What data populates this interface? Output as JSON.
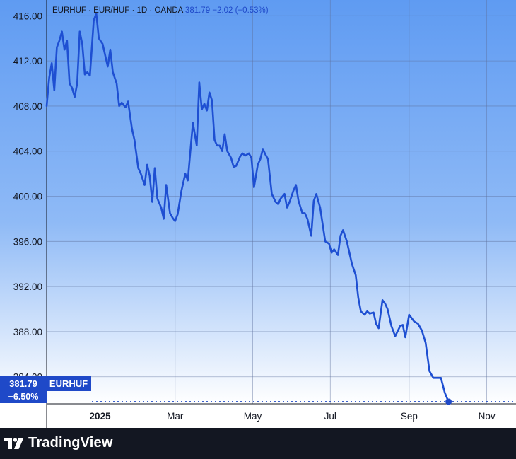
{
  "header": {
    "symbol": "EURHUF",
    "description": "EUR/HUF",
    "interval": "1D",
    "exchange": "OANDA",
    "price": "381.79",
    "change": "−2.02",
    "change_pct": "(−0.53%)"
  },
  "price_label": {
    "value": "381.79",
    "change_pct": "−6.50%",
    "series": "EURHUF"
  },
  "branding": "TradingView",
  "colors": {
    "line": "#1e4fd2",
    "label_bg": "#1f49c8",
    "grid": "#5c6f9a",
    "footer": "#131722",
    "bg_top": "#5f9bf2",
    "bg_bottom": "#ffffff"
  },
  "chart_data": {
    "type": "line",
    "title": "",
    "xlabel": "",
    "ylabel": "",
    "ylim": [
      381.6,
      417.4
    ],
    "y_ticks": [
      "416.00",
      "412.00",
      "408.00",
      "404.00",
      "400.00",
      "396.00",
      "392.00",
      "388.00",
      "384.00"
    ],
    "x_ticks": [
      "2025",
      "Mar",
      "May",
      "Jul",
      "Sep",
      "Nov"
    ],
    "x_tick_dates": [
      "2025-01-01",
      "2025-03-01",
      "2025-05-01",
      "2025-07-01",
      "2025-09-01",
      "2025-11-01"
    ],
    "x_range": [
      "2024-11-20",
      "2025-11-24"
    ],
    "last_value": 381.79,
    "series": [
      {
        "name": "EURHUF",
        "points": [
          [
            "2024-11-20",
            408.0
          ],
          [
            "2024-11-22",
            410.5
          ],
          [
            "2024-11-24",
            411.8
          ],
          [
            "2024-11-26",
            409.4
          ],
          [
            "2024-11-28",
            413.2
          ],
          [
            "2024-11-30",
            413.8
          ],
          [
            "2024-12-02",
            414.6
          ],
          [
            "2024-12-04",
            413.0
          ],
          [
            "2024-12-06",
            413.8
          ],
          [
            "2024-12-08",
            410.0
          ],
          [
            "2024-12-10",
            409.6
          ],
          [
            "2024-12-12",
            408.8
          ],
          [
            "2024-12-14",
            410.0
          ],
          [
            "2024-12-16",
            414.6
          ],
          [
            "2024-12-18",
            413.5
          ],
          [
            "2024-12-20",
            410.8
          ],
          [
            "2024-12-22",
            411.0
          ],
          [
            "2024-12-24",
            410.7
          ],
          [
            "2024-12-27",
            415.6
          ],
          [
            "2024-12-29",
            416.2
          ],
          [
            "2024-12-31",
            414.0
          ],
          [
            "2025-01-03",
            413.5
          ],
          [
            "2025-01-05",
            412.5
          ],
          [
            "2025-01-07",
            411.5
          ],
          [
            "2025-01-09",
            413.0
          ],
          [
            "2025-01-11",
            411.0
          ],
          [
            "2025-01-14",
            410.0
          ],
          [
            "2025-01-16",
            408.0
          ],
          [
            "2025-01-18",
            408.3
          ],
          [
            "2025-01-21",
            407.9
          ],
          [
            "2025-01-23",
            408.4
          ],
          [
            "2025-01-26",
            406.0
          ],
          [
            "2025-01-28",
            405.0
          ],
          [
            "2025-01-31",
            402.5
          ],
          [
            "2025-02-02",
            402.0
          ],
          [
            "2025-02-05",
            401.0
          ],
          [
            "2025-02-07",
            402.8
          ],
          [
            "2025-02-09",
            401.8
          ],
          [
            "2025-02-11",
            399.5
          ],
          [
            "2025-02-13",
            402.5
          ],
          [
            "2025-02-15",
            399.8
          ],
          [
            "2025-02-18",
            399.0
          ],
          [
            "2025-02-20",
            398.0
          ],
          [
            "2025-02-22",
            401.0
          ],
          [
            "2025-02-25",
            398.5
          ],
          [
            "2025-02-27",
            398.1
          ],
          [
            "2025-03-01",
            397.8
          ],
          [
            "2025-03-03",
            398.4
          ],
          [
            "2025-03-06",
            400.5
          ],
          [
            "2025-03-09",
            402.0
          ],
          [
            "2025-03-11",
            401.4
          ],
          [
            "2025-03-13",
            404.0
          ],
          [
            "2025-03-15",
            406.5
          ],
          [
            "2025-03-18",
            404.5
          ],
          [
            "2025-03-20",
            410.1
          ],
          [
            "2025-03-22",
            407.7
          ],
          [
            "2025-03-24",
            408.2
          ],
          [
            "2025-03-26",
            407.6
          ],
          [
            "2025-03-28",
            409.2
          ],
          [
            "2025-03-30",
            408.5
          ],
          [
            "2025-04-01",
            405.0
          ],
          [
            "2025-04-03",
            404.5
          ],
          [
            "2025-04-05",
            404.5
          ],
          [
            "2025-04-07",
            404.0
          ],
          [
            "2025-04-09",
            405.5
          ],
          [
            "2025-04-11",
            404.0
          ],
          [
            "2025-04-14",
            403.4
          ],
          [
            "2025-04-16",
            402.6
          ],
          [
            "2025-04-18",
            402.7
          ],
          [
            "2025-04-21",
            403.5
          ],
          [
            "2025-04-23",
            403.8
          ],
          [
            "2025-04-25",
            403.6
          ],
          [
            "2025-04-28",
            403.8
          ],
          [
            "2025-04-30",
            403.4
          ],
          [
            "2025-05-02",
            400.8
          ],
          [
            "2025-05-05",
            402.8
          ],
          [
            "2025-05-07",
            403.3
          ],
          [
            "2025-05-09",
            404.2
          ],
          [
            "2025-05-11",
            403.7
          ],
          [
            "2025-05-13",
            403.3
          ],
          [
            "2025-05-16",
            400.2
          ],
          [
            "2025-05-19",
            399.5
          ],
          [
            "2025-05-21",
            399.3
          ],
          [
            "2025-05-23",
            399.8
          ],
          [
            "2025-05-26",
            400.2
          ],
          [
            "2025-05-28",
            399.0
          ],
          [
            "2025-05-30",
            399.5
          ],
          [
            "2025-06-02",
            400.5
          ],
          [
            "2025-06-04",
            401.0
          ],
          [
            "2025-06-06",
            399.6
          ],
          [
            "2025-06-09",
            398.5
          ],
          [
            "2025-06-11",
            398.5
          ],
          [
            "2025-06-13",
            398.0
          ],
          [
            "2025-06-16",
            396.5
          ],
          [
            "2025-06-18",
            399.6
          ],
          [
            "2025-06-20",
            400.2
          ],
          [
            "2025-06-23",
            399.0
          ],
          [
            "2025-06-25",
            397.5
          ],
          [
            "2025-06-27",
            396.0
          ],
          [
            "2025-06-30",
            395.8
          ],
          [
            "2025-07-02",
            395.0
          ],
          [
            "2025-07-04",
            395.3
          ],
          [
            "2025-07-07",
            394.8
          ],
          [
            "2025-07-09",
            396.5
          ],
          [
            "2025-07-11",
            397.0
          ],
          [
            "2025-07-14",
            396.0
          ],
          [
            "2025-07-16",
            395.0
          ],
          [
            "2025-07-18",
            394.0
          ],
          [
            "2025-07-21",
            393.0
          ],
          [
            "2025-07-23",
            391.0
          ],
          [
            "2025-07-25",
            389.8
          ],
          [
            "2025-07-28",
            389.5
          ],
          [
            "2025-07-30",
            389.8
          ],
          [
            "2025-08-01",
            389.6
          ],
          [
            "2025-08-04",
            389.7
          ],
          [
            "2025-08-06",
            388.7
          ],
          [
            "2025-08-08",
            388.3
          ],
          [
            "2025-08-11",
            390.8
          ],
          [
            "2025-08-13",
            390.5
          ],
          [
            "2025-08-15",
            390.0
          ],
          [
            "2025-08-18",
            388.5
          ],
          [
            "2025-08-21",
            387.6
          ],
          [
            "2025-08-25",
            388.5
          ],
          [
            "2025-08-27",
            388.6
          ],
          [
            "2025-08-29",
            387.5
          ],
          [
            "2025-09-01",
            389.5
          ],
          [
            "2025-09-03",
            389.2
          ],
          [
            "2025-09-05",
            388.9
          ],
          [
            "2025-09-08",
            388.7
          ],
          [
            "2025-09-11",
            388.1
          ],
          [
            "2025-09-14",
            387.0
          ],
          [
            "2025-09-17",
            384.5
          ],
          [
            "2025-09-20",
            383.9
          ],
          [
            "2025-09-23",
            383.9
          ],
          [
            "2025-09-26",
            383.9
          ],
          [
            "2025-09-29",
            382.6
          ],
          [
            "2025-10-02",
            381.79
          ]
        ]
      }
    ]
  }
}
